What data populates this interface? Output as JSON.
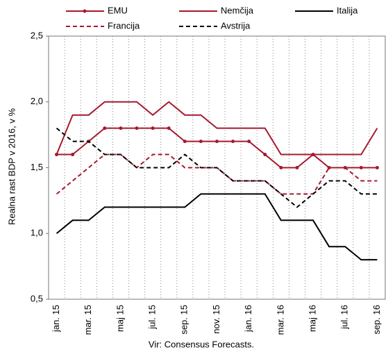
{
  "chart_data": {
    "type": "line",
    "categories": [
      "jan. 15",
      null,
      "mar. 15",
      null,
      "maj 15",
      null,
      "jul. 15",
      null,
      "sep. 15",
      null,
      "nov. 15",
      null,
      "jan. 16",
      null,
      "mar. 16",
      null,
      "maj 16",
      null,
      "jul. 16",
      null,
      "sep. 16"
    ],
    "series": [
      {
        "name": "EMU",
        "color": "#a6192e",
        "dash": false,
        "markers": true,
        "values": [
          1.6,
          1.6,
          1.7,
          1.8,
          1.8,
          1.8,
          1.8,
          1.8,
          1.7,
          1.7,
          1.7,
          1.7,
          1.7,
          1.6,
          1.5,
          1.5,
          1.6,
          1.5,
          1.5,
          1.5,
          1.5
        ]
      },
      {
        "name": "Nemčija",
        "color": "#a6192e",
        "dash": false,
        "markers": false,
        "values": [
          1.6,
          1.9,
          1.9,
          2.0,
          2.0,
          2.0,
          1.9,
          2.0,
          1.9,
          1.9,
          1.8,
          1.8,
          1.8,
          1.8,
          1.6,
          1.6,
          1.6,
          1.6,
          1.6,
          1.6,
          1.8
        ]
      },
      {
        "name": "Italija",
        "color": "#000000",
        "dash": false,
        "markers": false,
        "values": [
          1.0,
          1.1,
          1.1,
          1.2,
          1.2,
          1.2,
          1.2,
          1.2,
          1.2,
          1.3,
          1.3,
          1.3,
          1.3,
          1.3,
          1.1,
          1.1,
          1.1,
          0.9,
          0.9,
          0.8,
          0.8
        ]
      },
      {
        "name": "Francija",
        "color": "#a6192e",
        "dash": true,
        "markers": false,
        "values": [
          1.3,
          1.4,
          1.5,
          1.6,
          1.6,
          1.5,
          1.6,
          1.6,
          1.5,
          1.5,
          1.5,
          1.4,
          1.4,
          1.4,
          1.3,
          1.3,
          1.3,
          1.5,
          1.5,
          1.4,
          1.4
        ]
      },
      {
        "name": "Avstrija",
        "color": "#000000",
        "dash": true,
        "markers": false,
        "values": [
          1.8,
          1.7,
          1.7,
          1.6,
          1.6,
          1.5,
          1.5,
          1.5,
          1.6,
          1.5,
          1.5,
          1.4,
          1.4,
          1.4,
          1.3,
          1.2,
          1.3,
          1.4,
          1.4,
          1.3,
          1.3
        ]
      }
    ],
    "y_label": "Realna rast BDP v 2016, v %",
    "source": "Vir: Consensus Forecasts.",
    "ylim": [
      0.5,
      2.5
    ],
    "yticks": [
      {
        "value": 0.5,
        "label": "0,5"
      },
      {
        "value": 1.0,
        "label": "1,0"
      },
      {
        "value": 1.5,
        "label": "1,5"
      },
      {
        "value": 2.0,
        "label": "2,0"
      },
      {
        "value": 2.5,
        "label": "2,5"
      }
    ],
    "xgrid": true
  }
}
